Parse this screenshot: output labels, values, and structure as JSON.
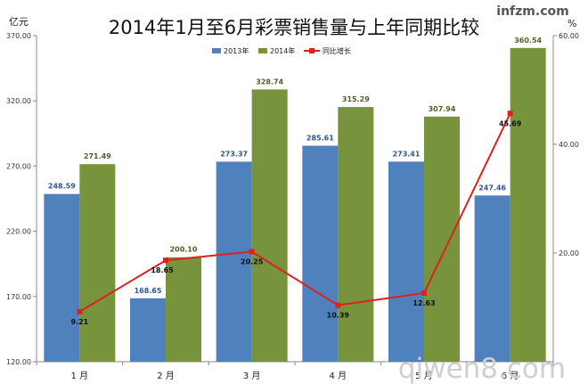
{
  "title": "2014年1月至6月彩票销售量与上年同期比较",
  "brand": "infzm.com",
  "watermark": "qiwen8.com",
  "chart_data": {
    "type": "bar",
    "title": "2014年1月至6月彩票销售量与上年同期比较",
    "categories": [
      "1 月",
      "2 月",
      "3 月",
      "4 月",
      "5 月",
      "6 月"
    ],
    "ylabel": "亿元",
    "y2label": "%",
    "ylim": [
      120,
      370
    ],
    "y2lim": [
      0,
      60
    ],
    "yticks": [
      "120.00",
      "170.00",
      "220.00",
      "270.00",
      "320.00",
      "370.00"
    ],
    "y2ticks": [
      "20.00",
      "40.00",
      "60.00"
    ],
    "legend_position": "top-right",
    "grid": false,
    "series": [
      {
        "name": "2013年",
        "kind": "bar",
        "color": "#4f81bd",
        "label_color": "#2f5597",
        "values": [
          248.59,
          168.65,
          273.37,
          285.61,
          273.41,
          247.46
        ],
        "labels": [
          "248.59",
          "168.65",
          "273.37",
          "285.61",
          "273.41",
          "247.46"
        ]
      },
      {
        "name": "2014年",
        "kind": "bar",
        "color": "#77933c",
        "label_color": "#4f6228",
        "values": [
          271.49,
          200.1,
          328.74,
          315.29,
          307.94,
          360.54
        ],
        "labels": [
          "271.49",
          "200.10",
          "328.74",
          "315.29",
          "307.94",
          "360.54"
        ]
      },
      {
        "name": "同比增长",
        "kind": "line",
        "axis": "right",
        "color": "#e02020",
        "values": [
          9.21,
          18.65,
          20.25,
          10.39,
          12.63,
          45.69
        ],
        "labels": [
          "9.21",
          "18.65",
          "20.25",
          "10.39",
          "12.63",
          "45.69"
        ]
      }
    ]
  }
}
